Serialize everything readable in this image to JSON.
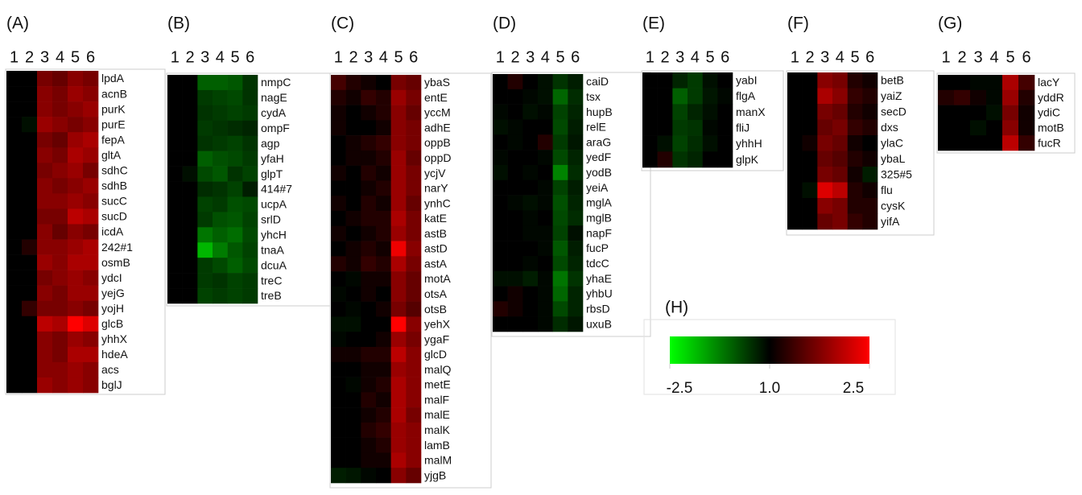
{
  "chart_data": [
    {
      "type": "heatmap",
      "title": "(A)",
      "columns": [
        "1",
        "2",
        "3",
        "4",
        "5",
        "6"
      ],
      "rows": [
        "lpdA",
        "acnB",
        "purK",
        "purE",
        "fepA",
        "gltA",
        "sdhC",
        "sdhB",
        "sucC",
        "sucD",
        "icdA",
        "242#1",
        "osmB",
        "ydcI",
        "yejG",
        "yojH",
        "glcB",
        "yhhX",
        "hdeA",
        "acs",
        "bglJ"
      ],
      "values": [
        [
          1,
          1,
          1.7,
          1.6,
          1.8,
          1.7
        ],
        [
          1,
          1,
          1.8,
          1.7,
          1.9,
          1.8
        ],
        [
          1,
          1,
          1.8,
          1.7,
          1.8,
          1.9
        ],
        [
          1,
          0.8,
          1.9,
          1.8,
          1.7,
          1.8
        ],
        [
          1,
          1,
          1.7,
          1.6,
          1.9,
          2.0
        ],
        [
          1,
          1,
          1.8,
          1.7,
          2.0,
          1.9
        ],
        [
          1,
          1,
          1.7,
          1.8,
          1.9,
          1.7
        ],
        [
          1,
          1,
          1.8,
          1.7,
          1.8,
          1.9
        ],
        [
          1,
          1,
          1.8,
          1.8,
          1.9,
          1.8
        ],
        [
          1,
          1,
          1.7,
          1.7,
          2.1,
          2.0
        ],
        [
          1,
          1,
          1.8,
          1.6,
          1.8,
          1.7
        ],
        [
          1,
          1.2,
          1.8,
          1.8,
          1.9,
          2.0
        ],
        [
          1,
          1,
          1.9,
          1.8,
          2.0,
          2.0
        ],
        [
          1,
          1,
          1.7,
          1.8,
          1.9,
          1.8
        ],
        [
          1,
          1,
          1.8,
          1.7,
          1.9,
          1.9
        ],
        [
          1,
          1.3,
          1.7,
          1.7,
          1.8,
          1.7
        ],
        [
          1,
          1,
          2.1,
          2.0,
          2.5,
          2.3
        ],
        [
          1,
          1,
          1.8,
          1.7,
          1.9,
          1.8
        ],
        [
          1,
          1,
          1.8,
          1.7,
          2.0,
          2.0
        ],
        [
          1,
          1,
          1.8,
          1.8,
          1.9,
          1.8
        ],
        [
          1,
          1,
          1.9,
          1.8,
          1.9,
          1.8
        ]
      ]
    },
    {
      "type": "heatmap",
      "title": "(B)",
      "columns": [
        "1",
        "2",
        "3",
        "4",
        "5",
        "6"
      ],
      "rows": [
        "nmpC",
        "nagE",
        "cydA",
        "ompF",
        "agp",
        "yfaH",
        "glpT",
        "414#7",
        "ucpA",
        "srlD",
        "yhcH",
        "tnaA",
        "dcuA",
        "treC",
        "treB"
      ],
      "values": [
        [
          1,
          1,
          -0.3,
          -0.3,
          -0.2,
          0.3
        ],
        [
          1,
          1,
          0.2,
          0.1,
          0,
          0.3
        ],
        [
          1,
          1,
          0.3,
          0.2,
          0.1,
          0.2
        ],
        [
          1,
          1,
          0.2,
          0.3,
          0.4,
          0.5
        ],
        [
          1,
          1,
          0.3,
          0.2,
          0.1,
          0.3
        ],
        [
          1,
          1,
          -0.3,
          -0.1,
          0,
          0.2
        ],
        [
          1,
          0.8,
          0,
          -0.2,
          0.3,
          0.1
        ],
        [
          1,
          1,
          0.4,
          0.3,
          0.1,
          0.6
        ],
        [
          1,
          1,
          0.1,
          0.2,
          -0.1,
          0
        ],
        [
          1,
          1,
          0.2,
          -0.1,
          -0.2,
          0.1
        ],
        [
          1,
          1,
          -0.6,
          -0.3,
          -0.5,
          0
        ],
        [
          1,
          1,
          -1.5,
          -0.7,
          -0.2,
          0.1
        ],
        [
          1,
          1,
          0.2,
          0,
          -0.3,
          0
        ],
        [
          1,
          1,
          0.2,
          0.3,
          0.1,
          0.2
        ],
        [
          1,
          1,
          0.1,
          0.2,
          0.1,
          0.2
        ]
      ]
    },
    {
      "type": "heatmap",
      "title": "(C)",
      "columns": [
        "1",
        "2",
        "3",
        "4",
        "5",
        "6"
      ],
      "rows": [
        "ybaS",
        "entE",
        "yccM",
        "adhE",
        "oppB",
        "oppD",
        "ycjV",
        "narY",
        "ynhC",
        "katE",
        "astB",
        "astD",
        "astA",
        "motA",
        "otsA",
        "otsB",
        "yehX",
        "ygaF",
        "glcD",
        "malQ",
        "metE",
        "malF",
        "malE",
        "malK",
        "lamB",
        "malM",
        "yjgB"
      ],
      "values": [
        [
          1.4,
          1.2,
          1.1,
          1.0,
          1.7,
          1.6
        ],
        [
          1.2,
          1.1,
          1.3,
          1.2,
          1.9,
          1.7
        ],
        [
          1.1,
          1.0,
          1.1,
          1.2,
          1.8,
          1.6
        ],
        [
          1.1,
          1.0,
          1.0,
          1.1,
          1.8,
          1.7
        ],
        [
          1.0,
          1.1,
          1.2,
          1.3,
          1.8,
          1.7
        ],
        [
          1.0,
          1.1,
          1.1,
          1.2,
          1.9,
          1.6
        ],
        [
          1.1,
          1.0,
          1.2,
          1.1,
          1.9,
          1.7
        ],
        [
          1.0,
          1.0,
          1.1,
          1.2,
          1.9,
          1.7
        ],
        [
          1.1,
          1.0,
          1.2,
          1.1,
          1.9,
          1.6
        ],
        [
          1.0,
          1.1,
          1.2,
          1.2,
          2.0,
          1.7
        ],
        [
          1.1,
          1.0,
          1.1,
          1.2,
          1.9,
          1.7
        ],
        [
          1.0,
          1.1,
          1.2,
          1.1,
          2.4,
          1.8
        ],
        [
          1.2,
          1.1,
          1.3,
          1.2,
          2.0,
          1.7
        ],
        [
          1.0,
          0.9,
          1.1,
          1.1,
          1.8,
          1.6
        ],
        [
          0.9,
          1.0,
          1.1,
          1.0,
          1.8,
          1.6
        ],
        [
          1.0,
          0.9,
          1.0,
          1.1,
          1.7,
          1.5
        ],
        [
          0.8,
          0.8,
          1.0,
          1.0,
          2.5,
          1.8
        ],
        [
          0.9,
          1.0,
          1.0,
          1.1,
          1.9,
          1.7
        ],
        [
          1.1,
          1.1,
          1.2,
          1.2,
          2.1,
          1.8
        ],
        [
          1.0,
          1.0,
          1.1,
          1.1,
          1.9,
          1.8
        ],
        [
          1.0,
          0.9,
          1.1,
          1.2,
          2.0,
          1.8
        ],
        [
          1.0,
          1.0,
          1.2,
          1.1,
          2.0,
          1.8
        ],
        [
          1.0,
          1.0,
          1.1,
          1.2,
          2.0,
          1.7
        ],
        [
          1.0,
          1.0,
          1.2,
          1.3,
          1.9,
          1.8
        ],
        [
          1.0,
          1.0,
          1.1,
          1.2,
          1.9,
          1.8
        ],
        [
          1.0,
          1.0,
          1.1,
          1.1,
          2.0,
          1.8
        ],
        [
          0.6,
          0.7,
          0.9,
          1.0,
          1.8,
          1.6
        ]
      ]
    },
    {
      "type": "heatmap",
      "title": "(D)",
      "columns": [
        "1",
        "2",
        "3",
        "4",
        "5",
        "6"
      ],
      "rows": [
        "caiD",
        "tsx",
        "hupB",
        "relE",
        "araG",
        "yedF",
        "yodB",
        "yeiA",
        "mglA",
        "mglB",
        "napF",
        "fucP",
        "tdcC",
        "yhaE",
        "yhbU",
        "rbsD",
        "uxuB"
      ],
      "values": [
        [
          1.0,
          1.2,
          1.0,
          0.8,
          0.3,
          0.6
        ],
        [
          1.0,
          1.0,
          0.9,
          0.8,
          -0.4,
          0.4
        ],
        [
          0.9,
          1.0,
          0.8,
          0.9,
          0.1,
          0.5
        ],
        [
          0.8,
          0.9,
          1.0,
          1.0,
          0.0,
          0.6
        ],
        [
          1.0,
          0.9,
          1.0,
          1.2,
          0.2,
          0.7
        ],
        [
          0.9,
          1.0,
          1.0,
          0.9,
          0.0,
          0.5
        ],
        [
          0.8,
          1.0,
          0.9,
          1.0,
          -0.8,
          0.4
        ],
        [
          1.0,
          1.0,
          1.0,
          0.9,
          0.1,
          0.6
        ],
        [
          1.0,
          0.9,
          0.8,
          0.9,
          -0.1,
          0.5
        ],
        [
          1.0,
          1.0,
          0.9,
          1.0,
          0.0,
          0.4
        ],
        [
          1.0,
          1.0,
          0.9,
          0.9,
          0.1,
          0.8
        ],
        [
          1.0,
          1.0,
          1.0,
          0.9,
          -0.2,
          0.6
        ],
        [
          1.0,
          1.0,
          0.9,
          1.0,
          0.0,
          0.5
        ],
        [
          0.8,
          0.8,
          0.6,
          0.9,
          -0.6,
          0.3
        ],
        [
          1.0,
          1.1,
          1.0,
          0.9,
          -0.4,
          0.5
        ],
        [
          1.2,
          1.1,
          1.0,
          0.9,
          0.0,
          0.5
        ],
        [
          1.0,
          1.0,
          1.0,
          0.9,
          0.4,
          0.7
        ]
      ]
    },
    {
      "type": "heatmap",
      "title": "(E)",
      "columns": [
        "1",
        "2",
        "3",
        "4",
        "5",
        "6"
      ],
      "rows": [
        "yabI",
        "flgA",
        "manX",
        "fliJ",
        "yhhH",
        "glpK"
      ],
      "values": [
        [
          1,
          1,
          0.5,
          0.2,
          0.8,
          1
        ],
        [
          1,
          1,
          -0.3,
          0.2,
          0.7,
          0.9
        ],
        [
          1,
          1,
          0.1,
          0.5,
          0.8,
          1
        ],
        [
          1,
          1,
          0.2,
          0.3,
          0.9,
          1
        ],
        [
          1,
          0.8,
          0.1,
          0.4,
          0.8,
          1
        ],
        [
          1,
          1.2,
          0.3,
          0.5,
          1,
          1
        ]
      ]
    },
    {
      "type": "heatmap",
      "title": "(F)",
      "columns": [
        "1",
        "2",
        "3",
        "4",
        "5",
        "6"
      ],
      "rows": [
        "betB",
        "yaiZ",
        "secD",
        "dxs",
        "ylaC",
        "ybaL",
        "325#5",
        "flu",
        "cysK",
        "yifA"
      ],
      "values": [
        [
          1,
          1,
          1.8,
          1.7,
          1.2,
          1.1
        ],
        [
          1,
          1,
          2.0,
          1.8,
          1.3,
          1.2
        ],
        [
          1,
          1,
          1.7,
          1.6,
          1.2,
          1.1
        ],
        [
          1,
          1,
          1.6,
          1.7,
          1.3,
          1.2
        ],
        [
          1,
          1.1,
          1.7,
          1.6,
          1.1,
          1.0
        ],
        [
          1,
          1,
          1.6,
          1.5,
          1.2,
          1.1
        ],
        [
          1,
          1,
          1.7,
          1.6,
          1.1,
          0.6
        ],
        [
          1,
          0.8,
          2.3,
          2.1,
          1.2,
          1.1
        ],
        [
          1,
          1,
          1.8,
          1.7,
          1.2,
          1.2
        ],
        [
          1,
          1,
          1.6,
          1.7,
          1.3,
          1.2
        ]
      ]
    },
    {
      "type": "heatmap",
      "title": "(G)",
      "columns": [
        "1",
        "2",
        "3",
        "4",
        "5",
        "6"
      ],
      "rows": [
        "lacY",
        "yddR",
        "ydiC",
        "motB",
        "fucR"
      ],
      "values": [
        [
          1,
          1,
          0.9,
          0.9,
          2.0,
          1.4
        ],
        [
          1.2,
          1.3,
          1.1,
          0.9,
          1.9,
          1.2
        ],
        [
          1,
          1,
          1,
          0.8,
          1.7,
          1.1
        ],
        [
          1,
          1,
          0.8,
          1,
          1.8,
          1.1
        ],
        [
          1,
          1,
          1,
          1,
          2.1,
          1.3
        ]
      ]
    },
    {
      "type": "colorbar",
      "title": "(H)",
      "clim": [
        -2.5,
        2.5
      ],
      "cticks": [
        -2.5,
        {
          "value": 1.0,
          "label": "1.0"
        },
        2.5
      ],
      "colors": [
        "#00ff00",
        "#000000",
        "#ff0000"
      ]
    }
  ]
}
